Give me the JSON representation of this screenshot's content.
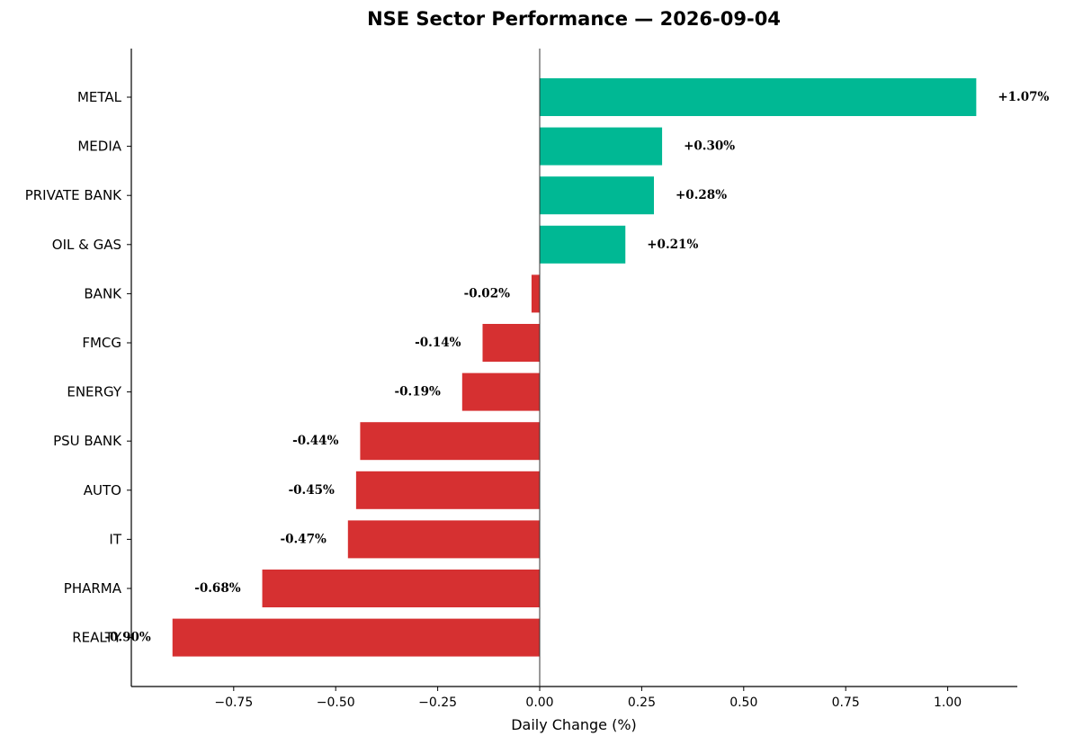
{
  "chart_data": {
    "type": "bar",
    "orientation": "horizontal",
    "title": "NSE Sector Performance — 2026-09-04",
    "xlabel": "Daily Change (%)",
    "ylabel": "",
    "xlim": [
      -1.0,
      1.17
    ],
    "xticks": [
      -0.75,
      -0.5,
      -0.25,
      0.0,
      0.25,
      0.5,
      0.75,
      1.0
    ],
    "xtick_labels": [
      "−0.75",
      "−0.50",
      "−0.25",
      "0.00",
      "0.25",
      "0.50",
      "0.75",
      "1.00"
    ],
    "grid": false,
    "categories": [
      "METAL",
      "MEDIA",
      "PRIVATE BANK",
      "OIL & GAS",
      "BANK",
      "FMCG",
      "ENERGY",
      "PSU BANK",
      "AUTO",
      "IT",
      "PHARMA",
      "REALTY"
    ],
    "values": [
      1.07,
      0.3,
      0.28,
      0.21,
      -0.02,
      -0.14,
      -0.19,
      -0.44,
      -0.45,
      -0.47,
      -0.68,
      -0.9
    ],
    "data_labels": [
      "+1.07%",
      "+0.30%",
      "+0.28%",
      "+0.21%",
      "-0.02%",
      "-0.14%",
      "-0.19%",
      "-0.44%",
      "-0.45%",
      "-0.47%",
      "-0.68%",
      "-0.90%"
    ],
    "colors": {
      "positive": "#00b894",
      "negative": "#d63031",
      "axis": "#000000",
      "zero_line": "#333333"
    }
  }
}
